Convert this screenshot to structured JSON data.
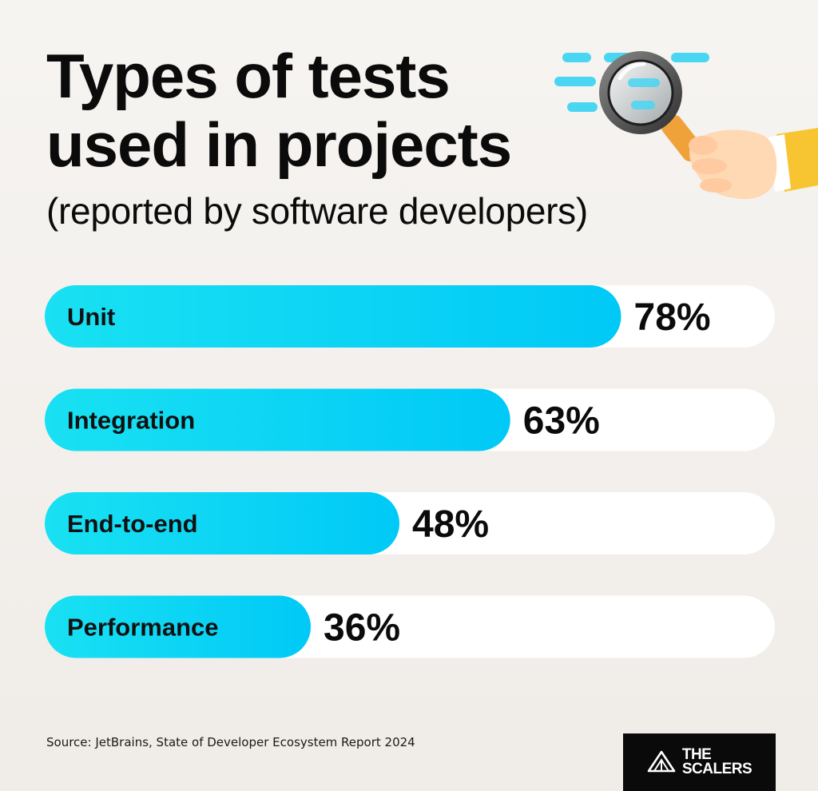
{
  "title_lines": [
    "Types of tests",
    "used in projects"
  ],
  "subtitle": "(reported by software developers)",
  "chart_data": {
    "type": "bar",
    "orientation": "horizontal",
    "categories": [
      "Unit",
      "Integration",
      "End-to-end",
      "Performance"
    ],
    "values": [
      78,
      63,
      48,
      36
    ],
    "value_labels": [
      "78%",
      "63%",
      "48%",
      "36%"
    ],
    "xlim": [
      0,
      100
    ],
    "grid": false,
    "legend": "none"
  },
  "source": "Source: JetBrains, State of Developer Ecosystem Report 2024",
  "logo": {
    "line1": "THE",
    "line2": "SCALERS"
  },
  "colors": {
    "bar_fill_start": "#19e1f2",
    "bar_fill_end": "#00c9f7",
    "bar_track": "#ffffff",
    "logo_bg": "#0a0a0a"
  },
  "illustration": "magnifying-glass-hand-icon"
}
